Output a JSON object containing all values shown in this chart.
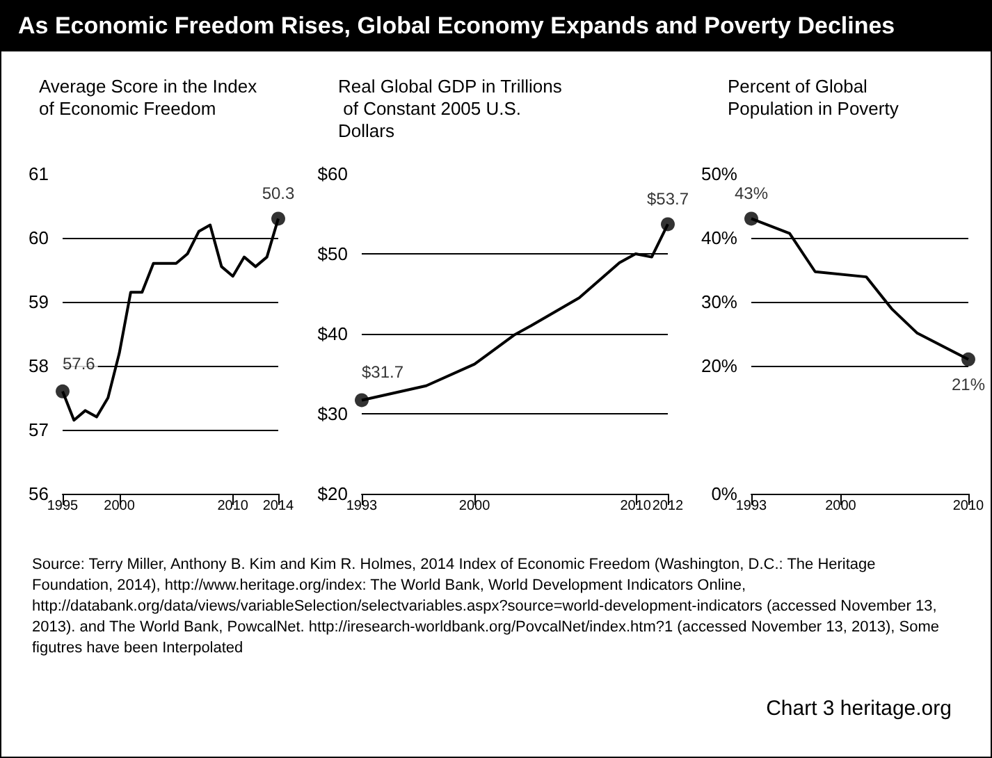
{
  "chart_data": [
    {
      "type": "line",
      "title": "As Economic Freedom Rises, Global Economy Expands and Poverty Declines",
      "ylabel": "Average Score in the Index of Economic Freedom",
      "x": [
        1995,
        1996,
        1997,
        1998,
        1999,
        2000,
        2001,
        2002,
        2003,
        2004,
        2005,
        2006,
        2007,
        2008,
        2009,
        2010,
        2011,
        2012,
        2013,
        2014
      ],
      "values": [
        57.6,
        57.15,
        57.3,
        57.2,
        57.5,
        58.2,
        59.15,
        59.15,
        59.6,
        59.6,
        59.6,
        59.75,
        60.1,
        60.2,
        59.55,
        59.4,
        59.7,
        59.55,
        59.7,
        60.3
      ],
      "color": "#000000",
      "marker": "none",
      "grid": "y",
      "xlim": [
        1995,
        2014
      ],
      "xticks": [
        1995,
        2000,
        2010,
        2014
      ],
      "ylim": [
        56,
        61
      ],
      "yticks": [
        56,
        57,
        58,
        59,
        60,
        61
      ],
      "annotations": [
        {
          "text": "57.6",
          "x": 1995,
          "y": 57.6
        },
        {
          "text": "50.3",
          "x": 2014,
          "y": 60.3
        },
        "Source: Terry Miller, Anthony B. Kim and Kim R. Holmes, 2014 Index of Economic Freedom (Washington, D.C.: The Heritage Foundation, 2014), http://www.heritage.org/index: The World Bank, World Development Indicators Online,  http://databank.org/data/views/variableSelection/selectvariables.aspx?source=world-development-indicators (accessed November 13, 2013). and The World Bank, PowcalNet. http://iresearch-worldbank.org/PovcalNet/index.htm?1 (accessed November 13, 2013), Some figutres have been Interpolated",
        "Chart 3 heritage.org"
      ]
    },
    {
      "type": "line",
      "ylabel": "Real Global GDP in Trillions of Constant 2005 U.S. Dollars",
      "x": [
        1993,
        1997,
        2000,
        2002.5,
        2003.5,
        2006.5,
        2009,
        2010,
        2011,
        2012
      ],
      "values": [
        31.7,
        33.5,
        36.2,
        39.9,
        41,
        44.5,
        48.9,
        50,
        49.6,
        53.7
      ],
      "color": "#000000",
      "marker": "none",
      "grid": "y",
      "xlim": [
        1993,
        2012
      ],
      "xticks": [
        1993,
        2000,
        2010,
        2012
      ],
      "ylim": [
        20,
        60
      ],
      "yticks": [
        {
          "value": 20,
          "label": "$20"
        },
        {
          "value": 30,
          "label": "$30"
        },
        {
          "value": 40,
          "label": "$40"
        },
        {
          "value": 50,
          "label": "$50"
        },
        {
          "value": 60,
          "label": "$60"
        }
      ],
      "annotations": [
        {
          "text": "$31.7",
          "x": 1993,
          "y": 31.7
        },
        {
          "text": "$53.7",
          "x": 2012,
          "y": 53.7
        }
      ]
    },
    {
      "type": "line",
      "ylabel": "Percent of Global Population in Poverty",
      "x": [
        1993,
        1996,
        1998,
        2002,
        2004,
        2006,
        2010
      ],
      "values": [
        43,
        40.7,
        34.7,
        33.9,
        28.9,
        25.1,
        21
      ],
      "color": "#000000",
      "marker": "none",
      "grid": "y",
      "xlim": [
        1993,
        2010
      ],
      "xticks": [
        1993,
        2000,
        2010
      ],
      "ylim": [
        0,
        50
      ],
      "yticks": [
        {
          "value": 0,
          "label": "0%"
        },
        {
          "value": 20,
          "label": "20%"
        },
        {
          "value": 30,
          "label": "30%"
        },
        {
          "value": 40,
          "label": "40%"
        },
        {
          "value": 50,
          "label": "50%"
        }
      ],
      "annotations": [
        {
          "text": "43%",
          "x": 1993,
          "y": 43
        },
        {
          "text": "21%",
          "x": 2010,
          "y": 21
        }
      ]
    }
  ]
}
